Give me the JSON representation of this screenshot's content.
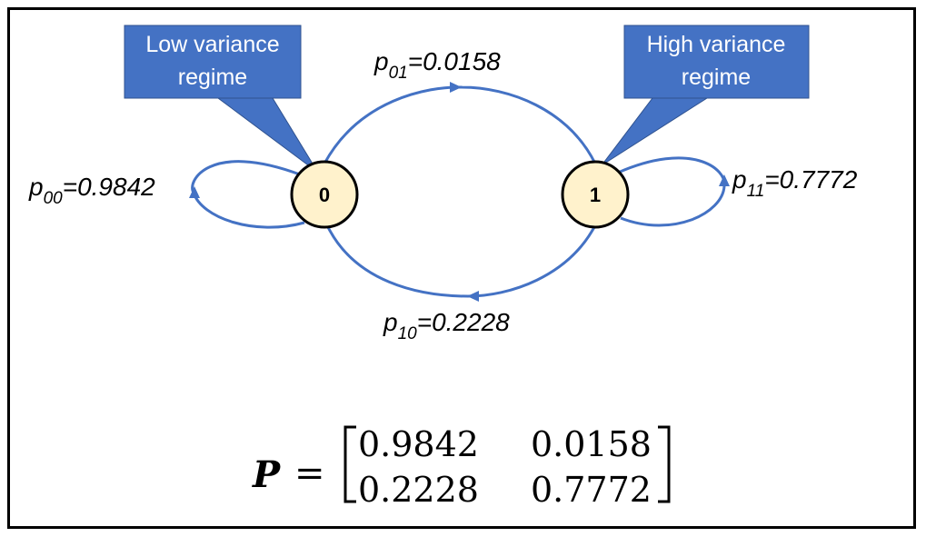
{
  "states": [
    {
      "id": "0",
      "label": "0"
    },
    {
      "id": "1",
      "label": "1"
    }
  ],
  "callouts": {
    "low": {
      "line1": "Low variance",
      "line2": "regime"
    },
    "high": {
      "line1": "High variance",
      "line2": "regime"
    }
  },
  "transitions": {
    "p00": {
      "prefix": "p",
      "sub": "00",
      "value": "=0.9842"
    },
    "p01": {
      "prefix": "p",
      "sub": "01",
      "value": "=0.0158"
    },
    "p10": {
      "prefix": "p",
      "sub": "10",
      "value": "=0.2228"
    },
    "p11": {
      "prefix": "p",
      "sub": "11",
      "value": "=0.7772"
    }
  },
  "matrix": {
    "symbol": "P",
    "equals": "=",
    "rows": [
      [
        "0.9842",
        "0.0158"
      ],
      [
        "0.2228",
        "0.7772"
      ]
    ]
  },
  "colors": {
    "arrow": "#4472C4",
    "callout_fill": "#4472C4",
    "node_fill": "#FFF2CC",
    "node_stroke": "#000000"
  }
}
